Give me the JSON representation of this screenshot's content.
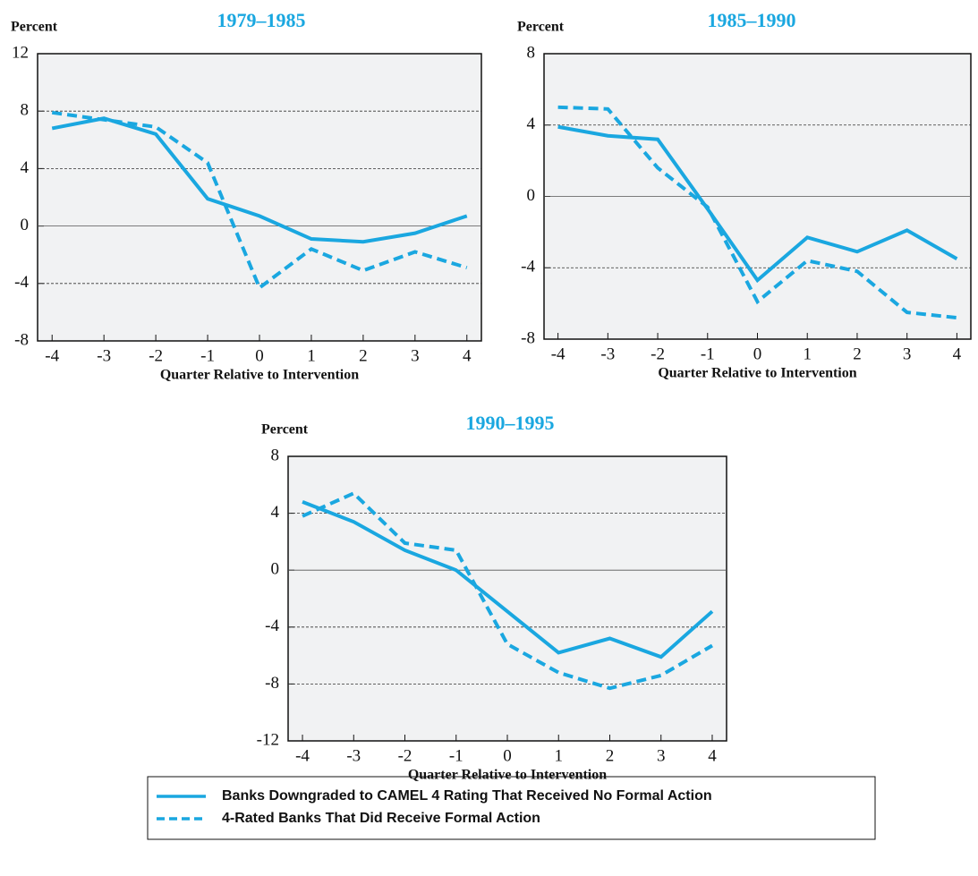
{
  "chart_data": [
    {
      "type": "line",
      "title": "1979–1985",
      "ylabel": "Percent",
      "xlabel": "Quarter Relative to Intervention",
      "x": [
        -4,
        -3,
        -2,
        -1,
        0,
        1,
        2,
        3,
        4
      ],
      "xlim": [
        -4.28,
        4.28
      ],
      "xticks": [
        -4,
        -3,
        -2,
        -1,
        0,
        1,
        2,
        3,
        4
      ],
      "ylim": [
        -8,
        12
      ],
      "yticks": [
        -8,
        -4,
        0,
        4,
        8,
        12
      ],
      "grid": true,
      "series": [
        {
          "name": "Banks Downgraded to CAMEL 4 Rating That Received No Formal Action",
          "color": "#1aa7e0",
          "line_style": "solid",
          "values": [
            6.8,
            7.5,
            6.4,
            1.9,
            0.7,
            -0.9,
            -1.1,
            -0.5,
            0.7
          ]
        },
        {
          "name": "4-Rated Banks That Did Receive Formal Action",
          "color": "#1aa7e0",
          "line_style": "dashed",
          "values": [
            7.9,
            7.4,
            6.9,
            4.4,
            -4.3,
            -1.6,
            -3.1,
            -1.8,
            -2.9
          ]
        }
      ]
    },
    {
      "type": "line",
      "title": "1985–1990",
      "ylabel": "Percent",
      "xlabel": "Quarter Relative to Intervention",
      "x": [
        -4,
        -3,
        -2,
        -1,
        0,
        1,
        2,
        3,
        4
      ],
      "xlim": [
        -4.28,
        4.28
      ],
      "xticks": [
        -4,
        -3,
        -2,
        -1,
        0,
        1,
        2,
        3,
        4
      ],
      "ylim": [
        -8,
        8
      ],
      "yticks": [
        -8,
        -4,
        0,
        4,
        8
      ],
      "grid": true,
      "series": [
        {
          "name": "Banks Downgraded to CAMEL 4 Rating That Received No Formal Action",
          "color": "#1aa7e0",
          "line_style": "solid",
          "values": [
            3.9,
            3.4,
            3.2,
            -0.7,
            -4.7,
            -2.3,
            -3.1,
            -1.9,
            -3.5
          ]
        },
        {
          "name": "4-Rated Banks That Did Receive Formal Action",
          "color": "#1aa7e0",
          "line_style": "dashed",
          "values": [
            5.0,
            4.9,
            1.6,
            -0.6,
            -5.9,
            -3.6,
            -4.2,
            -6.5,
            -6.8
          ]
        }
      ]
    },
    {
      "type": "line",
      "title": "1990–1995",
      "ylabel": "Percent",
      "xlabel": "Quarter Relative to Intervention",
      "x": [
        -4,
        -3,
        -2,
        -1,
        0,
        1,
        2,
        3,
        4
      ],
      "xlim": [
        -4.28,
        4.28
      ],
      "xticks": [
        -4,
        -3,
        -2,
        -1,
        0,
        1,
        2,
        3,
        4
      ],
      "ylim": [
        -12,
        8
      ],
      "yticks": [
        -12,
        -8,
        -4,
        0,
        4,
        8
      ],
      "grid": true,
      "series": [
        {
          "name": "Banks Downgraded to CAMEL 4 Rating That Received No Formal Action",
          "color": "#1aa7e0",
          "line_style": "solid",
          "values": [
            4.8,
            3.4,
            1.4,
            0.0,
            -2.9,
            -5.8,
            -4.8,
            -6.1,
            -2.9
          ]
        },
        {
          "name": "4-Rated Banks That Did Receive Formal Action",
          "color": "#1aa7e0",
          "line_style": "dashed",
          "values": [
            3.8,
            5.4,
            1.9,
            1.4,
            -5.2,
            -7.2,
            -8.3,
            -7.4,
            -5.3
          ]
        }
      ]
    }
  ]
}
